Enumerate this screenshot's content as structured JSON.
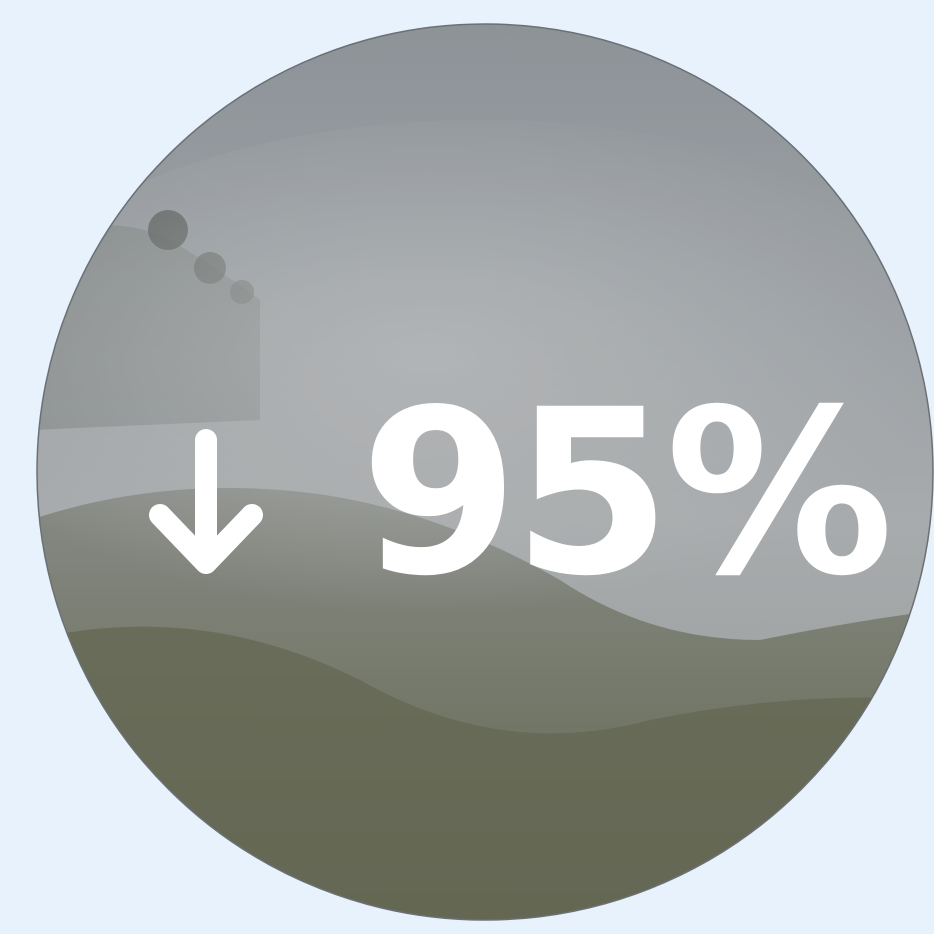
{
  "stat": {
    "text": "95%"
  }
}
